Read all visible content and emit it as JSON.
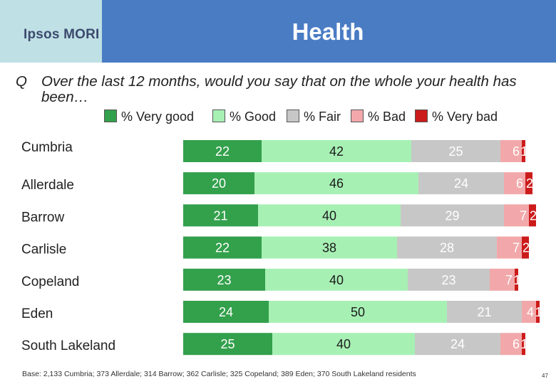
{
  "header": {
    "title": "Health",
    "logo": "Ipsos MORI"
  },
  "question": {
    "label": "Q",
    "text": "Over the last 12 months, would you say that on the whole your health has been…"
  },
  "colors": {
    "very_good": "#33a04c",
    "good": "#a7f0b4",
    "fair": "#c7c7c7",
    "bad": "#f2a8aa",
    "very_bad": "#cc1b1b",
    "header": "#4a7cc4",
    "logo_bg": "#bfe0e5"
  },
  "chart_data": {
    "type": "bar",
    "orientation": "horizontal",
    "stacked": true,
    "categories": [
      "Cumbria",
      "Allerdale",
      "Barrow",
      "Carlisle",
      "Copeland",
      "Eden",
      "South Lakeland"
    ],
    "series": [
      {
        "name": "% Very good",
        "values": [
          22,
          20,
          21,
          22,
          23,
          24,
          25
        ]
      },
      {
        "name": "% Good",
        "values": [
          42,
          46,
          40,
          38,
          40,
          50,
          40
        ]
      },
      {
        "name": "% Fair",
        "values": [
          25,
          24,
          29,
          28,
          23,
          21,
          24
        ]
      },
      {
        "name": "% Bad",
        "values": [
          6,
          6,
          7,
          7,
          7,
          4,
          6
        ]
      },
      {
        "name": "% Very bad",
        "values": [
          1,
          2,
          2,
          2,
          1,
          1,
          1
        ]
      }
    ],
    "xlim": [
      0,
      100
    ],
    "title": "Health",
    "legend": "top"
  },
  "footnote": "Base: 2,133 Cumbria; 373 Allerdale; 314 Barrow; 362 Carlisle; 325 Copeland; 389 Eden; 370 South Lakeland residents",
  "page_number": "47"
}
